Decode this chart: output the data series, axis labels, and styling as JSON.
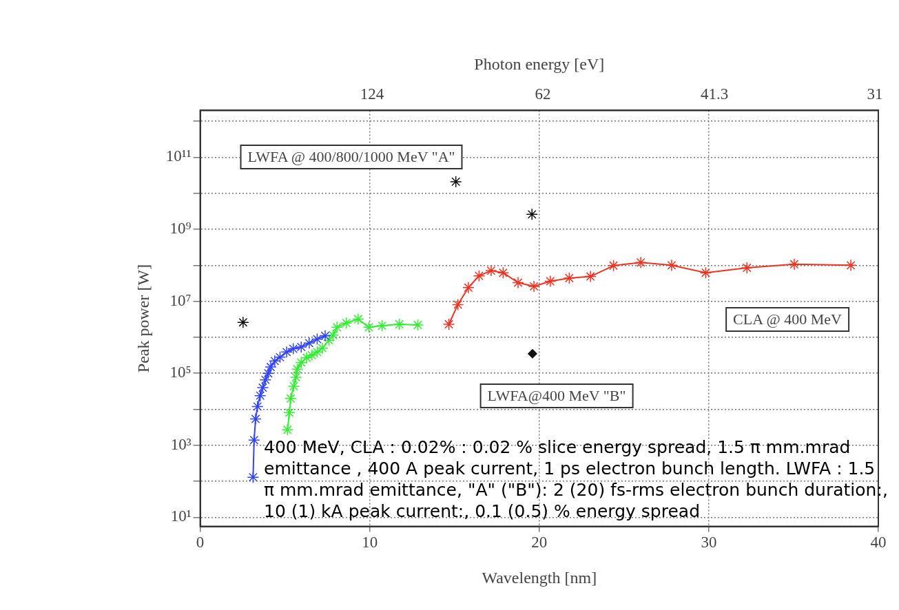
{
  "chart_data": {
    "type": "line",
    "xlabel": "Wavelength [nm]",
    "ylabel": "Peak power [W]",
    "x2label": "Photon energy [eV]",
    "xlim": [
      0,
      40
    ],
    "xticks": [
      0,
      10,
      20,
      30,
      40
    ],
    "ylim": [
      5.6,
      2000000000000.0
    ],
    "log": "y",
    "yticks": [
      {
        "value": 10,
        "label": "10¹"
      },
      {
        "value": 100,
        "label": null
      },
      {
        "value": 1000,
        "label": "10³"
      },
      {
        "value": 10000,
        "label": null
      },
      {
        "value": 100000,
        "label": "10⁵"
      },
      {
        "value": 1000000,
        "label": null
      },
      {
        "value": 10000000,
        "label": "10⁷"
      },
      {
        "value": 100000000,
        "label": null
      },
      {
        "value": 1000000000,
        "label": "10⁹"
      },
      {
        "value": 10000000000,
        "label": null
      },
      {
        "value": 100000000000,
        "label": "10¹¹"
      },
      {
        "value": 1000000000000,
        "label": null
      }
    ],
    "grid": true,
    "legend": false,
    "marker": "cross",
    "line_style": "solid",
    "series": [
      {
        "type": "line",
        "color": "#3344ff",
        "x": [
          3.12,
          3.18,
          3.27,
          3.38,
          3.54,
          3.69,
          3.85,
          4.01,
          4.16,
          4.4,
          4.71,
          5.1,
          5.49,
          5.96,
          6.43,
          6.9,
          7.37
        ],
        "values": [
          130,
          1400,
          5400,
          12000,
          24000,
          40000,
          66000,
          100000,
          150000,
          220000,
          280000,
          390000,
          480000,
          540000,
          690000,
          890000,
          1100000
        ]
      },
      {
        "type": "line",
        "color": "#33ee33",
        "x": [
          5.15,
          5.26,
          5.34,
          5.52,
          5.65,
          5.73,
          5.96,
          6.28,
          6.59,
          6.9,
          7.21,
          7.6,
          7.84,
          8.07,
          8.62,
          9.32,
          9.95,
          10.73,
          11.75,
          12.84
        ],
        "values": [
          2700,
          8100,
          20000,
          44000,
          78000,
          130000,
          200000,
          270000,
          320000,
          390000,
          500000,
          830000,
          1150000,
          1900000,
          2500000,
          3200000,
          1900000,
          2100000,
          2300000,
          2200000
        ]
      },
      {
        "type": "line",
        "color": "#ee3322",
        "x": [
          14.67,
          15.2,
          15.82,
          16.45,
          17.16,
          17.87,
          18.75,
          19.69,
          20.65,
          21.77,
          23.02,
          24.38,
          25.99,
          27.81,
          29.82,
          32.25,
          35.04,
          38.38
        ],
        "values": [
          2300000,
          8100000,
          24000000,
          51000000,
          71000000,
          62000000,
          33000000,
          26000000,
          36000000,
          44000000,
          49000000,
          98000000,
          120000000,
          100000000,
          62000000,
          85000000,
          107000000,
          100000000
        ]
      },
      {
        "type": "scatter",
        "color": "#111111",
        "x": [
          2.53,
          15.08,
          19.57
        ],
        "values": [
          2600000,
          21000000000,
          2600000000
        ]
      },
      {
        "type": "scatter",
        "color": "#111111",
        "marker": "diamond",
        "x": [
          19.6
        ],
        "values": [
          350000
        ]
      }
    ],
    "annotations": [
      "LWFA @ 400/800/1000 MeV \"A\"",
      "CLA @ 400 MeV",
      "LWFA@400 MeV \"B\"",
      "124",
      "62",
      "41.3",
      "31",
      "400 MeV, CLA : 0.02% : 0.02 % slice energy spread, 1.5 π mm.mrad emittance , 400 A peak current, 1 ps  electron bunch length. LWFA : 1.5 π mm.mrad emittance, \"A\" (\"B\"): 2 (20) fs-rms electron bunch duration:, 10 (1) kA peak current:, 0.1 (0.5) % energy spread"
    ]
  }
}
